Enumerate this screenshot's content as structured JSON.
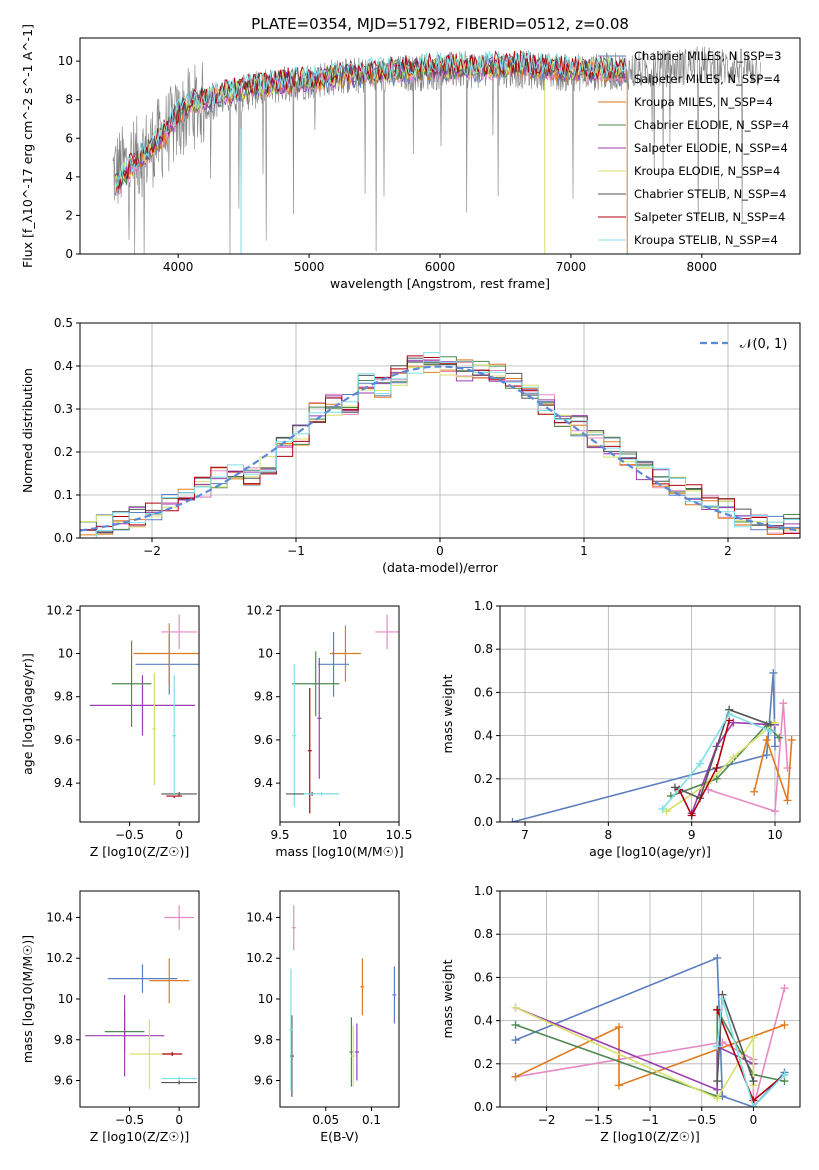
{
  "title": "PLATE=0354, MJD=51792, FIBERID=0512, z=0.08",
  "colors": {
    "chabrier_miles": "#5b7fbf",
    "salpeter_miles": "#e78ac3",
    "kroupa_miles": "#e07a1f",
    "chabrier_elodie": "#4f8a52",
    "salpeter_elodie": "#9a3fb0",
    "kroupa_elodie": "#d6e06a",
    "chabrier_stelib": "#555555",
    "salpeter_stelib": "#b0000f",
    "kroupa_stelib": "#7fe0e8",
    "normal": "#5b8ad8",
    "spectrum": "#808080"
  },
  "chart_data": [
    {
      "id": "spectrum",
      "type": "line",
      "xlabel": "wavelength [Angstrom, rest frame]",
      "ylabel": "Flux [f_λ10^-17 erg cm^-2 s^-1 A^-1]",
      "xlim": [
        3250,
        8750
      ],
      "ylim": [
        0,
        11.2
      ],
      "xticks": [
        4000,
        5000,
        6000,
        7000,
        8000
      ],
      "yticks": [
        0,
        2,
        4,
        6,
        8,
        10
      ],
      "legend_position": "top-right",
      "legend": [
        {
          "label": "Chabrier MILES, N_SSP=3",
          "color": "#5b7fbf"
        },
        {
          "label": "Salpeter MILES, N_SSP=4",
          "color": "#e78ac3"
        },
        {
          "label": "Kroupa MILES, N_SSP=4",
          "color": "#e07a1f"
        },
        {
          "label": "Chabrier ELODIE, N_SSP=4",
          "color": "#4f8a52"
        },
        {
          "label": "Salpeter ELODIE, N_SSP=4",
          "color": "#9a3fb0"
        },
        {
          "label": "Kroupa ELODIE, N_SSP=4",
          "color": "#d6e06a"
        },
        {
          "label": "Chabrier STELIB, N_SSP=4",
          "color": "#555555"
        },
        {
          "label": "Salpeter STELIB, N_SSP=4",
          "color": "#b0000f"
        },
        {
          "label": "Kroupa STELIB, N_SSP=4",
          "color": "#7fe0e8"
        }
      ],
      "model_continuum": [
        [
          3520,
          3.6
        ],
        [
          3650,
          4.6
        ],
        [
          3800,
          5.6
        ],
        [
          3900,
          6.3
        ],
        [
          4000,
          7.3
        ],
        [
          4100,
          7.8
        ],
        [
          4300,
          8.2
        ],
        [
          4500,
          8.6
        ],
        [
          4800,
          8.9
        ],
        [
          5000,
          9.0
        ],
        [
          5300,
          9.3
        ],
        [
          5600,
          9.5
        ],
        [
          6000,
          9.7
        ],
        [
          6300,
          9.7
        ],
        [
          6600,
          9.8
        ],
        [
          6900,
          9.6
        ],
        [
          7200,
          9.5
        ],
        [
          7430,
          9.5
        ]
      ],
      "data_continuum": [
        [
          3500,
          4.2
        ],
        [
          3700,
          5.0
        ],
        [
          3900,
          6.2
        ],
        [
          4100,
          7.6
        ],
        [
          4400,
          8.2
        ],
        [
          4800,
          8.8
        ],
        [
          5200,
          9.2
        ],
        [
          5600,
          9.3
        ],
        [
          6000,
          9.5
        ],
        [
          6500,
          9.6
        ],
        [
          7000,
          9.4
        ],
        [
          7500,
          9.5
        ],
        [
          8000,
          9.8
        ],
        [
          8450,
          9.6
        ]
      ]
    },
    {
      "id": "residuals",
      "type": "step",
      "xlabel": "(data-model)/error",
      "ylabel": "Normed distribution",
      "xlim": [
        -2.5,
        2.5
      ],
      "ylim": [
        0,
        0.5
      ],
      "xticks": [
        -2,
        -1,
        0,
        1,
        2
      ],
      "yticks": [
        0.0,
        0.1,
        0.2,
        0.3,
        0.4,
        0.5
      ],
      "grid": true,
      "legend_position": "top-right",
      "normal_label": "𝒩(0, 1)",
      "histogram_values": [
        0.02,
        0.03,
        0.04,
        0.05,
        0.06,
        0.08,
        0.09,
        0.12,
        0.14,
        0.15,
        0.14,
        0.17,
        0.21,
        0.24,
        0.29,
        0.31,
        0.31,
        0.36,
        0.35,
        0.38,
        0.4,
        0.41,
        0.4,
        0.39,
        0.39,
        0.38,
        0.36,
        0.34,
        0.31,
        0.28,
        0.26,
        0.23,
        0.21,
        0.19,
        0.16,
        0.14,
        0.12,
        0.1,
        0.08,
        0.07,
        0.05,
        0.04,
        0.03,
        0.03
      ]
    },
    {
      "id": "age-vs-Z",
      "type": "errorbar",
      "xlabel": "Z [log10(Z/Z☉)]",
      "ylabel": "age  [log10(age/yr)]",
      "xlim": [
        -1.0,
        0.2
      ],
      "ylim": [
        9.22,
        10.22
      ],
      "xticks": [
        -0.5,
        0.0
      ],
      "yticks": [
        9.4,
        9.6,
        9.8,
        10.0,
        10.2
      ],
      "points": [
        {
          "x": -0.37,
          "y": 9.76,
          "xerr": 0.53,
          "yerr": 0.14,
          "c": "#9a3fb0"
        },
        {
          "x": -0.48,
          "y": 9.86,
          "xerr": 0.2,
          "yerr": 0.2,
          "c": "#4f8a52"
        },
        {
          "x": -0.1,
          "y": 9.95,
          "xerr": 0.34,
          "yerr": 0.14,
          "c": "#5b7fbf"
        },
        {
          "x": -0.1,
          "y": 10.0,
          "xerr": 0.36,
          "yerr": 0.14,
          "c": "#e07a1f"
        },
        {
          "x": 0.0,
          "y": 10.1,
          "xerr": 0.18,
          "yerr": 0.08,
          "c": "#e78ac3"
        },
        {
          "x": -0.25,
          "y": 9.65,
          "xerr": 0.0,
          "yerr": 0.26,
          "c": "#d6e06a"
        },
        {
          "x": 0.0,
          "y": 9.35,
          "xerr": 0.18,
          "yerr": 0.0,
          "c": "#555555"
        },
        {
          "x": -0.05,
          "y": 9.34,
          "xerr": 0.08,
          "yerr": 0.0,
          "c": "#b0000f"
        },
        {
          "x": -0.05,
          "y": 9.62,
          "xerr": 0.0,
          "yerr": 0.28,
          "c": "#7fe0e8"
        }
      ]
    },
    {
      "id": "age-vs-mass",
      "type": "errorbar",
      "xlabel": "mass [log10(M/M☉)]",
      "ylabel": "",
      "xlim": [
        9.5,
        10.5
      ],
      "ylim": [
        9.22,
        10.22
      ],
      "xticks": [
        9.5,
        10.0,
        10.5
      ],
      "yticks": [
        9.4,
        9.6,
        9.8,
        10.0,
        10.2
      ],
      "points": [
        {
          "x": 10.4,
          "y": 10.1,
          "xerr": 0.1,
          "yerr": 0.08,
          "c": "#e78ac3"
        },
        {
          "x": 10.05,
          "y": 10.0,
          "xerr": 0.13,
          "yerr": 0.13,
          "c": "#e07a1f"
        },
        {
          "x": 9.95,
          "y": 9.95,
          "xerr": 0.13,
          "yerr": 0.15,
          "c": "#5b7fbf"
        },
        {
          "x": 9.8,
          "y": 9.86,
          "xerr": 0.2,
          "yerr": 0.15,
          "c": "#4f8a52"
        },
        {
          "x": 9.83,
          "y": 9.7,
          "xerr": 0.0,
          "yerr": 0.28,
          "c": "#9a3fb0"
        },
        {
          "x": 9.75,
          "y": 9.55,
          "xerr": 0.0,
          "yerr": 0.29,
          "c": "#b0000f"
        },
        {
          "x": 9.62,
          "y": 9.62,
          "xerr": 0.0,
          "yerr": 0.33,
          "c": "#7fe0e8"
        },
        {
          "x": 9.77,
          "y": 9.35,
          "xerr": 0.22,
          "yerr": 0.0,
          "c": "#555555"
        },
        {
          "x": 9.85,
          "y": 9.35,
          "xerr": 0.15,
          "yerr": 0.0,
          "c": "#7fe0e8"
        }
      ]
    },
    {
      "id": "weight-vs-age",
      "type": "line",
      "xlabel": "age  [log10(age/yr)]",
      "ylabel": "mass weight",
      "xlim": [
        6.7,
        10.3
      ],
      "ylim": [
        0,
        1
      ],
      "xticks": [
        7,
        8,
        9,
        10
      ],
      "yticks": [
        0.0,
        0.2,
        0.4,
        0.6,
        0.8,
        1.0
      ],
      "grid": true,
      "series": [
        {
          "c": "#5b7fbf",
          "x": [
            6.85,
            9.9,
            9.98,
            10.0
          ],
          "y": [
            0.0,
            0.31,
            0.69,
            0.35
          ]
        },
        {
          "c": "#e78ac3",
          "x": [
            9.2,
            10.0,
            10.1,
            10.15
          ],
          "y": [
            0.15,
            0.05,
            0.55,
            0.25
          ]
        },
        {
          "c": "#e07a1f",
          "x": [
            9.75,
            9.9,
            10.15,
            10.2
          ],
          "y": [
            0.14,
            0.38,
            0.1,
            0.38
          ]
        },
        {
          "c": "#4f8a52",
          "x": [
            8.75,
            9.3,
            9.9,
            10.05
          ],
          "y": [
            0.12,
            0.2,
            0.45,
            0.39
          ]
        },
        {
          "c": "#9a3fb0",
          "x": [
            9.0,
            9.3,
            9.5,
            10.0
          ],
          "y": [
            0.04,
            0.35,
            0.46,
            0.45
          ]
        },
        {
          "c": "#d6e06a",
          "x": [
            8.7,
            9.2,
            9.5,
            10.0
          ],
          "y": [
            0.05,
            0.18,
            0.3,
            0.46
          ]
        },
        {
          "c": "#555555",
          "x": [
            8.8,
            9.1,
            9.45,
            9.95
          ],
          "y": [
            0.16,
            0.11,
            0.52,
            0.45
          ]
        },
        {
          "c": "#b0000f",
          "x": [
            8.85,
            9.0,
            9.3,
            9.45
          ],
          "y": [
            0.15,
            0.03,
            0.25,
            0.47
          ]
        },
        {
          "c": "#7fe0e8",
          "x": [
            8.65,
            9.1,
            9.45,
            9.95
          ],
          "y": [
            0.06,
            0.27,
            0.5,
            0.42
          ]
        }
      ]
    },
    {
      "id": "mass-vs-Z",
      "type": "errorbar",
      "xlabel": "Z [log10(Z/Z☉)]",
      "ylabel": "mass [log10(M/M☉)]",
      "xlim": [
        -1.0,
        0.2
      ],
      "ylim": [
        9.47,
        10.53
      ],
      "xticks": [
        -0.5,
        0.0
      ],
      "yticks": [
        9.6,
        9.8,
        10.0,
        10.2,
        10.4
      ],
      "points": [
        {
          "x": 0.0,
          "y": 10.4,
          "xerr": 0.15,
          "yerr": 0.06,
          "c": "#e78ac3"
        },
        {
          "x": -0.37,
          "y": 10.1,
          "xerr": 0.35,
          "yerr": 0.07,
          "c": "#5b7fbf"
        },
        {
          "x": -0.1,
          "y": 10.09,
          "xerr": 0.2,
          "yerr": 0.11,
          "c": "#e07a1f"
        },
        {
          "x": -0.55,
          "y": 9.84,
          "xerr": 0.2,
          "yerr": 0.1,
          "c": "#4f8a52"
        },
        {
          "x": -0.55,
          "y": 9.82,
          "xerr": 0.4,
          "yerr": 0.2,
          "c": "#9a3fb0"
        },
        {
          "x": -0.3,
          "y": 9.73,
          "xerr": 0.2,
          "yerr": 0.17,
          "c": "#d6e06a"
        },
        {
          "x": -0.07,
          "y": 9.73,
          "xerr": 0.1,
          "yerr": 0.0,
          "c": "#b0000f"
        },
        {
          "x": 0.0,
          "y": 9.59,
          "xerr": 0.18,
          "yerr": 0.0,
          "c": "#555555"
        },
        {
          "x": 0.0,
          "y": 9.61,
          "xerr": 0.18,
          "yerr": 0.0,
          "c": "#7fe0e8"
        }
      ]
    },
    {
      "id": "mass-vs-ebv",
      "type": "errorbar",
      "xlabel": "E(B-V)",
      "ylabel": "",
      "xlim": [
        0.0,
        0.13
      ],
      "ylim": [
        9.47,
        10.53
      ],
      "xticks": [
        0.05,
        0.1
      ],
      "yticks": [
        9.6,
        9.8,
        10.0,
        10.2,
        10.4
      ],
      "points": [
        {
          "x": 0.015,
          "y": 10.35,
          "xerr": 0.0,
          "yerr": 0.11,
          "c": "#e78ac3"
        },
        {
          "x": 0.125,
          "y": 10.02,
          "xerr": 0.0,
          "yerr": 0.14,
          "c": "#5b7fbf"
        },
        {
          "x": 0.09,
          "y": 10.06,
          "xerr": 0.0,
          "yerr": 0.14,
          "c": "#e07a1f"
        },
        {
          "x": 0.078,
          "y": 9.74,
          "xerr": 0.0,
          "yerr": 0.17,
          "c": "#4f8a52"
        },
        {
          "x": 0.084,
          "y": 9.74,
          "xerr": 0.0,
          "yerr": 0.14,
          "c": "#9a3fb0"
        },
        {
          "x": 0.08,
          "y": 9.72,
          "xerr": 0.0,
          "yerr": 0.15,
          "c": "#d6e06a"
        },
        {
          "x": 0.013,
          "y": 9.72,
          "xerr": 0.0,
          "yerr": 0.2,
          "c": "#555555"
        },
        {
          "x": 0.012,
          "y": 9.85,
          "xerr": 0.0,
          "yerr": 0.3,
          "c": "#7fe0e8"
        }
      ]
    },
    {
      "id": "weight-vs-Z",
      "type": "line",
      "xlabel": "Z [log10(Z/Z☉)]",
      "ylabel": "mass weight",
      "xlim": [
        -2.45,
        0.45
      ],
      "ylim": [
        0,
        1
      ],
      "xticks": [
        -2.0,
        -1.5,
        -1.0,
        -0.5,
        0.0
      ],
      "yticks": [
        0.0,
        0.2,
        0.4,
        0.6,
        0.8,
        1.0
      ],
      "grid": true,
      "series": [
        {
          "c": "#5b7fbf",
          "x": [
            -2.3,
            -0.35,
            -0.3,
            0.0,
            0.3
          ],
          "y": [
            0.31,
            0.69,
            0.05,
            0.0,
            0.16
          ]
        },
        {
          "c": "#e78ac3",
          "x": [
            -2.3,
            -0.3,
            0.0,
            0.0,
            0.3
          ],
          "y": [
            0.14,
            0.3,
            0.22,
            0.0,
            0.55
          ]
        },
        {
          "c": "#e07a1f",
          "x": [
            -2.3,
            -1.3,
            -1.3,
            0.3
          ],
          "y": [
            0.14,
            0.37,
            0.1,
            0.38
          ]
        },
        {
          "c": "#4f8a52",
          "x": [
            -2.3,
            -0.35,
            -0.35,
            0.0,
            0.3
          ],
          "y": [
            0.38,
            0.05,
            0.45,
            0.15,
            0.12
          ]
        },
        {
          "c": "#9a3fb0",
          "x": [
            -2.3,
            -0.35,
            -0.35,
            0.0
          ],
          "y": [
            0.46,
            0.08,
            0.28,
            0.2
          ]
        },
        {
          "c": "#d6e06a",
          "x": [
            -2.3,
            -0.35,
            0.0,
            0.0
          ],
          "y": [
            0.46,
            0.04,
            0.32,
            0.1
          ]
        },
        {
          "c": "#555555",
          "x": [
            -0.35,
            -0.3,
            0.0
          ],
          "y": [
            0.12,
            0.52,
            0.12
          ]
        },
        {
          "c": "#b0000f",
          "x": [
            -0.35,
            0.0,
            0.3
          ],
          "y": [
            0.45,
            0.03,
            0.15
          ]
        },
        {
          "c": "#7fe0e8",
          "x": [
            -0.35,
            -0.3,
            0.0,
            0.3
          ],
          "y": [
            0.28,
            0.5,
            0.0,
            0.15
          ]
        }
      ]
    }
  ]
}
